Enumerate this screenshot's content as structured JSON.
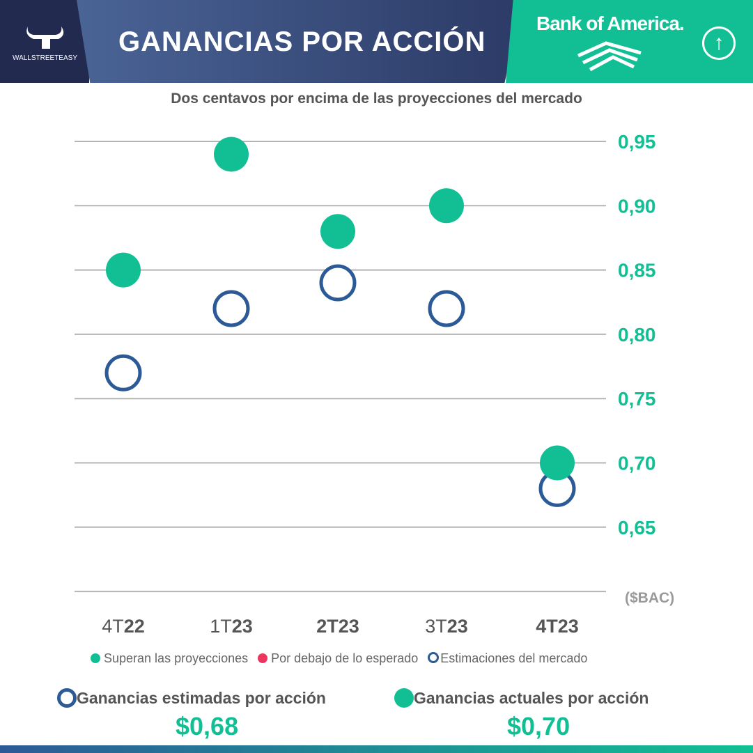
{
  "header": {
    "title": "GANANCIAS POR ACCIÓN",
    "logo_text": "WALLSTREETEASY",
    "brand": "Bank of America.",
    "up_icon": "arrow-up-circle-icon"
  },
  "colors": {
    "actual": "#12bf94",
    "estimate": "#2c5a96",
    "below": "#ee3560",
    "grid": "#b5b5b5"
  },
  "chart_data": {
    "type": "scatter",
    "title": "Dos centavos por encima de las proyecciones del mercado",
    "unit_label": "($BAC)",
    "categories": [
      {
        "a": "4T",
        "b": "22",
        "a_bold": false
      },
      {
        "a": "1T",
        "b": "23",
        "a_bold": false
      },
      {
        "a": "2T",
        "b": "23",
        "a_bold": true
      },
      {
        "a": "3T",
        "b": "23",
        "a_bold": false
      },
      {
        "a": "4T",
        "b": "23",
        "a_bold": true
      }
    ],
    "series": [
      {
        "name": "Estimaciones del mercado",
        "values": [
          0.77,
          0.82,
          0.84,
          0.82,
          0.68
        ]
      },
      {
        "name": "Superan las proyecciones",
        "values": [
          0.85,
          0.94,
          0.88,
          0.9,
          0.7
        ]
      }
    ],
    "yticks": [
      "0,95",
      "0,90",
      "0,85",
      "0,80",
      "0,75",
      "0,70",
      "0,65"
    ],
    "ytick_values": [
      0.95,
      0.9,
      0.85,
      0.8,
      0.75,
      0.7,
      0.65
    ],
    "ylim": [
      0.6,
      0.95
    ],
    "grid": true,
    "legend": [
      "Superan las proyecciones",
      "Por debajo de lo esperado",
      "Estimaciones del mercado"
    ]
  },
  "summary": {
    "estimated_label": "Ganancias estimadas por acción",
    "estimated_value": "$0,68",
    "actual_label": "Ganancias actuales por acción",
    "actual_value": "$0,70"
  }
}
